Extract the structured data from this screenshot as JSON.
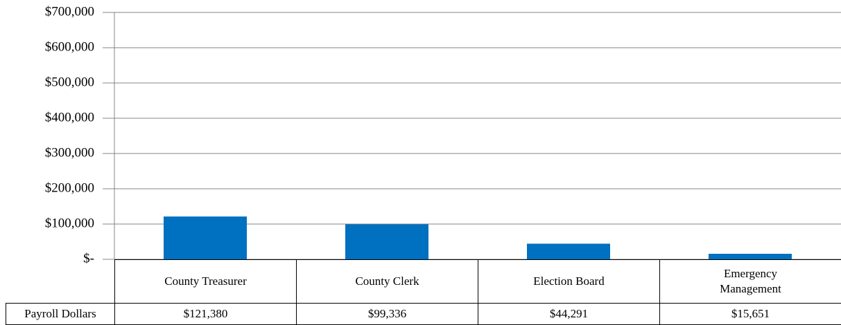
{
  "chart_data": {
    "type": "bar",
    "categories": [
      "County Treasurer",
      "County Clerk",
      "Election Board",
      "Emergency Management"
    ],
    "series": [
      {
        "name": "Payroll Dollars",
        "color": "#0070c0",
        "values": [
          121380,
          99336,
          44291,
          15651
        ],
        "value_labels": [
          "$121,380",
          "$99,336",
          "$44,291",
          "$15,651"
        ]
      }
    ],
    "ylim": [
      0,
      700000
    ],
    "yticks": [
      {
        "value": 0,
        "label": "$-"
      },
      {
        "value": 100000,
        "label": "$100,000"
      },
      {
        "value": 200000,
        "label": "$200,000"
      },
      {
        "value": 300000,
        "label": "$300,000"
      },
      {
        "value": 400000,
        "label": "$400,000"
      },
      {
        "value": 500000,
        "label": "$500,000"
      },
      {
        "value": 600000,
        "label": "$600,000"
      },
      {
        "value": 700000,
        "label": "$700,000"
      }
    ],
    "grid": true
  }
}
